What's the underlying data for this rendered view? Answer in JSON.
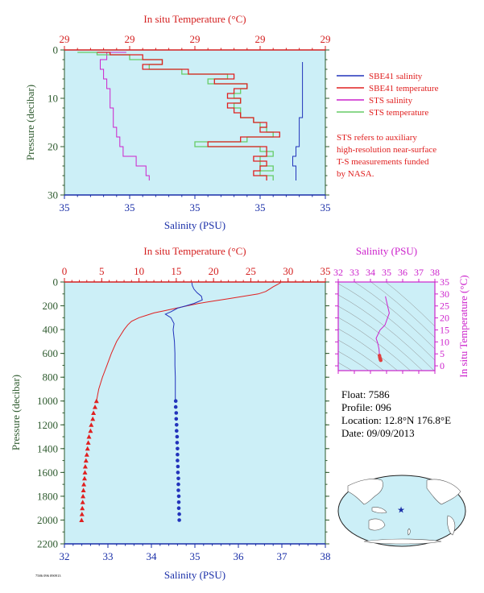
{
  "colors": {
    "plot_bg": "#cceff7",
    "temperature_axis": "#d42020",
    "salinity_axis": "#1a2fa8",
    "pressure_axis": "#2e5a2e",
    "sbe41_salinity": "#2233bb",
    "sbe41_temperature": "#e02020",
    "sts_salinity": "#cc22cc",
    "sts_temperature": "#66cc66",
    "ts_axis": "#cc22cc"
  },
  "chart_data": [
    {
      "type": "line",
      "name": "near-surface profile",
      "title": "",
      "top_axis_label": "In situ Temperature (°C)",
      "top_ticks": [
        "29",
        "29",
        "29",
        "29",
        "29"
      ],
      "top_range": [
        28.9,
        29.3
      ],
      "bottom_axis_label": "Salinity (PSU)",
      "bottom_ticks": [
        "35",
        "35",
        "35",
        "35",
        "35"
      ],
      "bottom_range": [
        34.2,
        35.0
      ],
      "ylabel": "Pressure (decibar)",
      "y_ticks": [
        "0",
        "10",
        "20",
        "30"
      ],
      "ylim": [
        0,
        30
      ],
      "legend_position": "right",
      "legend": [
        {
          "label": "SBE41 salinity",
          "color": "#2233bb"
        },
        {
          "label": "SBE41 temperature",
          "color": "#e02020"
        },
        {
          "label": "STS salinity",
          "color": "#cc22cc"
        },
        {
          "label": "STS temperature",
          "color": "#66cc66"
        }
      ],
      "note": [
        "STS refers to auxiliary",
        "high-resolution near-surface",
        "T-S measurements funded",
        "by NASA."
      ],
      "series": [
        {
          "name": "STS salinity",
          "axis": "bottom",
          "pressure": [
            0.5,
            2,
            4,
            6,
            8,
            10,
            12,
            14,
            16,
            18,
            20,
            22,
            24,
            26,
            27
          ],
          "values": [
            34.39,
            34.33,
            34.31,
            34.32,
            34.33,
            34.34,
            34.34,
            34.35,
            34.35,
            34.36,
            34.37,
            34.38,
            34.42,
            34.45,
            34.46
          ]
        },
        {
          "name": "SBE41 salinity",
          "axis": "bottom",
          "pressure": [
            2.5,
            5,
            8,
            10,
            12,
            14,
            16,
            18,
            20,
            22,
            24,
            26,
            27
          ],
          "values": [
            34.93,
            34.93,
            34.93,
            34.93,
            34.93,
            34.93,
            34.92,
            34.92,
            34.92,
            34.91,
            34.9,
            34.91,
            34.91
          ]
        },
        {
          "name": "STS temperature",
          "axis": "top",
          "pressure": [
            0.5,
            1,
            2,
            3,
            4,
            5,
            6,
            7,
            8,
            9,
            10,
            11,
            12,
            13,
            14,
            15,
            16,
            17,
            18,
            19,
            20,
            21,
            22,
            23,
            24,
            25,
            26,
            27
          ],
          "values": [
            28.92,
            28.95,
            29.0,
            29.05,
            29.03,
            29.08,
            29.15,
            29.12,
            29.18,
            29.17,
            29.16,
            29.17,
            29.16,
            29.17,
            29.17,
            29.19,
            29.2,
            29.21,
            29.22,
            29.18,
            29.1,
            29.2,
            29.22,
            29.2,
            29.2,
            29.22,
            29.2,
            29.22
          ]
        },
        {
          "name": "SBE41 temperature",
          "axis": "top",
          "pressure": [
            0.5,
            1,
            2,
            3,
            4,
            5,
            6,
            7,
            8,
            9,
            10,
            11,
            12,
            13,
            14,
            15,
            16,
            17,
            18,
            19,
            20,
            21,
            22,
            23,
            24,
            25,
            26,
            27
          ],
          "values": [
            28.95,
            28.97,
            29.02,
            29.05,
            29.02,
            29.09,
            29.16,
            29.13,
            29.18,
            29.16,
            29.15,
            29.17,
            29.15,
            29.16,
            29.17,
            29.19,
            29.21,
            29.2,
            29.23,
            29.17,
            29.12,
            29.21,
            29.21,
            29.19,
            29.21,
            29.2,
            29.19,
            29.21
          ]
        }
      ]
    },
    {
      "type": "line",
      "name": "full-depth profile",
      "title": "",
      "top_axis_label": "In situ Temperature (°C)",
      "top_ticks": [
        "0",
        "5",
        "10",
        "15",
        "20",
        "25",
        "30",
        "35"
      ],
      "top_range": [
        0,
        35
      ],
      "bottom_axis_label": "Salinity (PSU)",
      "bottom_ticks": [
        "32",
        "33",
        "34",
        "35",
        "36",
        "37",
        "38"
      ],
      "bottom_range": [
        32,
        38
      ],
      "ylabel": "Pressure (decibar)",
      "y_ticks": [
        "0",
        "200",
        "400",
        "600",
        "800",
        "1000",
        "1200",
        "1400",
        "1600",
        "1800",
        "2000",
        "2200"
      ],
      "ylim": [
        0,
        2200
      ],
      "series": [
        {
          "name": "Temperature",
          "axis": "top",
          "pressure": [
            5,
            20,
            40,
            60,
            80,
            100,
            120,
            140,
            160,
            180,
            200,
            220,
            240,
            260,
            280,
            300,
            330,
            360,
            400,
            450,
            500,
            600,
            700,
            800,
            900,
            1000
          ],
          "values": [
            29.0,
            28.6,
            28.0,
            27.5,
            27.0,
            26.0,
            24.0,
            22.0,
            20.0,
            18.0,
            16.5,
            15.0,
            13.5,
            12.0,
            11.0,
            10.0,
            9.0,
            8.5,
            8.0,
            7.5,
            7.0,
            6.3,
            5.7,
            5.1,
            4.6,
            4.3
          ]
        },
        {
          "name": "Temperature (discrete)",
          "axis": "top",
          "pressure": [
            1000,
            1050,
            1100,
            1150,
            1200,
            1250,
            1300,
            1350,
            1400,
            1450,
            1500,
            1550,
            1600,
            1650,
            1700,
            1750,
            1800,
            1850,
            1900,
            1950,
            2000
          ],
          "values": [
            4.3,
            4.1,
            3.9,
            3.8,
            3.6,
            3.5,
            3.3,
            3.2,
            3.1,
            3.0,
            2.9,
            2.8,
            2.75,
            2.7,
            2.6,
            2.55,
            2.5,
            2.45,
            2.4,
            2.35,
            2.3
          ]
        },
        {
          "name": "Salinity",
          "axis": "bottom",
          "pressure": [
            5,
            30,
            60,
            90,
            120,
            150,
            180,
            200,
            220,
            250,
            270,
            300,
            350,
            400,
            500,
            600,
            700,
            800,
            900,
            1000
          ],
          "values": [
            34.93,
            34.94,
            34.98,
            35.05,
            35.15,
            35.17,
            34.98,
            34.8,
            34.6,
            34.45,
            34.32,
            34.45,
            34.52,
            34.5,
            34.53,
            34.54,
            34.54,
            34.55,
            34.55,
            34.55
          ]
        },
        {
          "name": "Salinity (discrete)",
          "axis": "bottom",
          "pressure": [
            1000,
            1050,
            1100,
            1150,
            1200,
            1250,
            1300,
            1350,
            1400,
            1450,
            1500,
            1550,
            1600,
            1650,
            1700,
            1750,
            1800,
            1850,
            1900,
            1950,
            2000
          ],
          "values": [
            34.56,
            34.56,
            34.57,
            34.57,
            34.58,
            34.58,
            34.59,
            34.59,
            34.6,
            34.6,
            34.6,
            34.61,
            34.61,
            34.62,
            34.62,
            34.62,
            34.63,
            34.63,
            34.63,
            34.64,
            34.64
          ]
        }
      ]
    },
    {
      "type": "scatter",
      "name": "T-S diagram",
      "title": "",
      "top_axis_label": "Salinity (PSU)",
      "top_ticks": [
        "32",
        "33",
        "34",
        "35",
        "36",
        "37",
        "38"
      ],
      "top_range": [
        32,
        38
      ],
      "right_axis_label": "In situ Temperature (°C)",
      "right_ticks": [
        "0",
        "5",
        "10",
        "15",
        "20",
        "25",
        "30",
        "35"
      ],
      "right_range": [
        -2,
        35
      ],
      "series": [
        {
          "name": "T-S curve",
          "salinity": [
            34.93,
            34.98,
            35.1,
            35.17,
            34.9,
            34.6,
            34.35,
            34.45,
            34.5,
            34.53,
            34.55,
            34.56,
            34.58,
            34.6,
            34.62,
            34.64
          ],
          "temperature": [
            29.0,
            27.5,
            24.0,
            22.0,
            17.0,
            15.0,
            11.5,
            9.5,
            8.0,
            7.0,
            5.5,
            4.3,
            3.6,
            3.0,
            2.6,
            2.3
          ]
        }
      ]
    }
  ],
  "float_info": {
    "float": "Float:  7586",
    "profile": "Profile:  096",
    "location": "Location:  12.8°N  176.8°E",
    "date": "Date:  09/09/2013"
  },
  "map": {
    "marker_lat": 12.8,
    "marker_lon": 176.8
  },
  "footer": {
    "code": "7586 096 090913"
  }
}
